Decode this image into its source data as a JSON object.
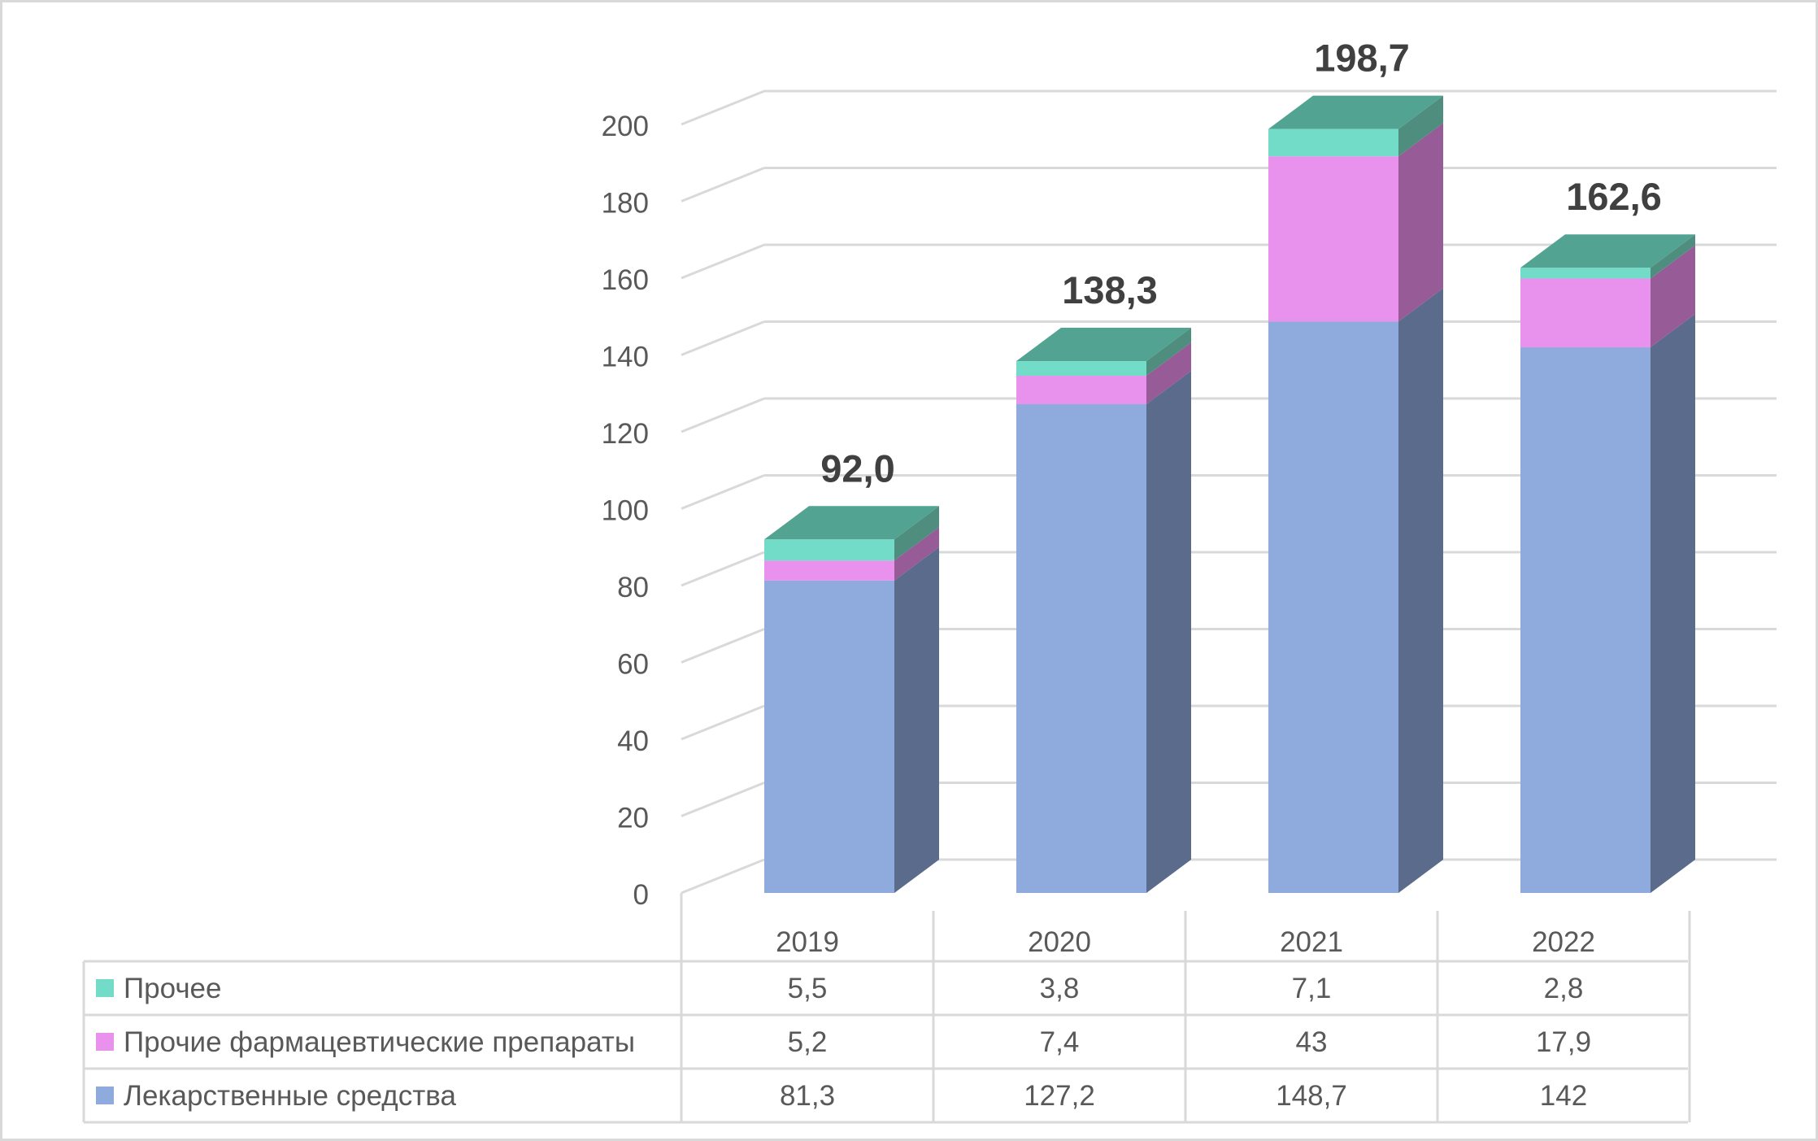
{
  "chart_data": {
    "type": "bar",
    "stacked": true,
    "three_d": true,
    "categories": [
      "2019",
      "2020",
      "2021",
      "2022"
    ],
    "series": [
      {
        "name": "Лекарственные средства",
        "values": [
          "81,3",
          "127,2",
          "148,7",
          "142"
        ],
        "color": "#8faadc",
        "side_color": "#5a6b8b"
      },
      {
        "name": "Прочие фармацевтические препараты",
        "values": [
          "5,2",
          "7,4",
          "43",
          "17,9"
        ],
        "color": "#e891ed",
        "side_color": "#975b97"
      },
      {
        "name": "Прочее",
        "values": [
          "5,5",
          "3,8",
          "7,1",
          "2,8"
        ],
        "color": "#72dcc8",
        "side_color": "#4f8e7e",
        "top_color": "#52a392"
      }
    ],
    "totals": [
      "92,0",
      "138,3",
      "198,7",
      "162,6"
    ],
    "yticks": [
      "0",
      "20",
      "40",
      "60",
      "80",
      "100",
      "120",
      "140",
      "160",
      "180",
      "200"
    ],
    "ylim": [
      0,
      200
    ],
    "grid": true,
    "legend": "data-table-below"
  }
}
